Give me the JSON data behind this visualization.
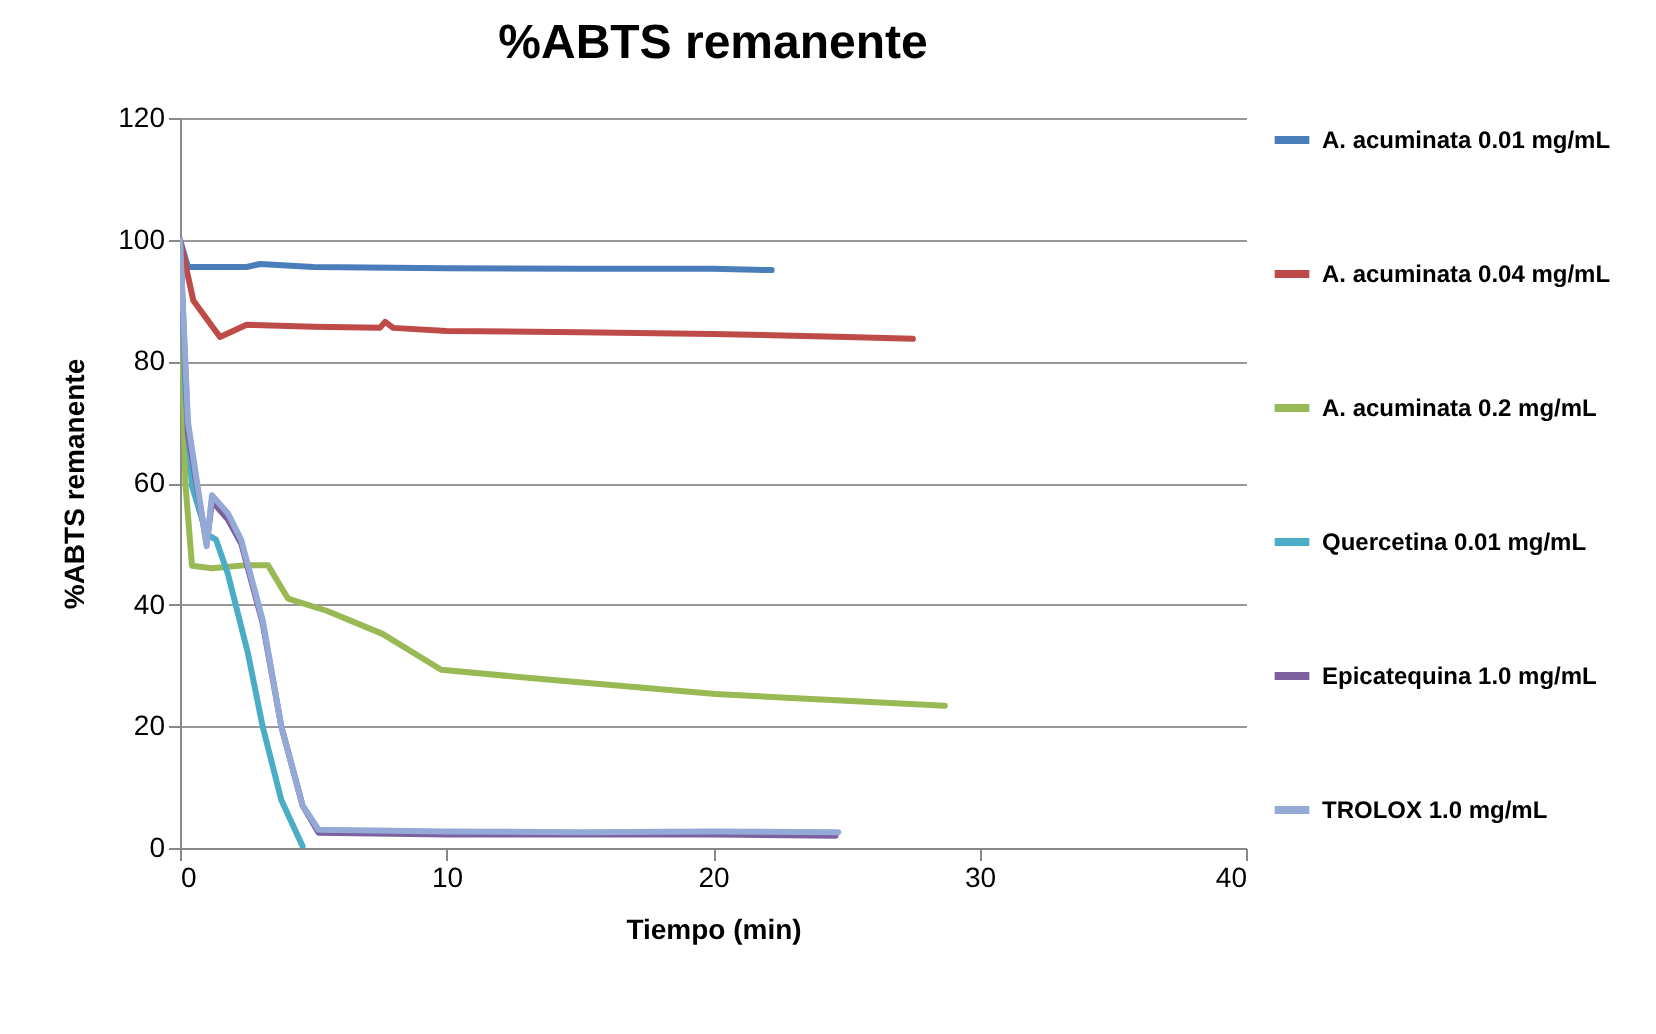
{
  "chart_data": {
    "type": "line",
    "title": "%ABTS remanente",
    "xlabel": "Tiempo (min)",
    "ylabel": "%ABTS remanente",
    "xlim": [
      0,
      40
    ],
    "xticks": [
      0,
      10,
      20,
      30,
      40
    ],
    "ylim": [
      0,
      120
    ],
    "yticks": [
      0,
      20,
      40,
      60,
      80,
      100,
      120
    ],
    "grid": "y",
    "legend": "right",
    "marker": "none",
    "line_style": "solid",
    "series": [
      {
        "name": "A. acuminata 0.01 mg/mL",
        "color": "#4a7ebb",
        "x": [
          0,
          0.3,
          1,
          2.5,
          3,
          5,
          10,
          15,
          20,
          22.2
        ],
        "values": [
          100,
          95.5,
          95.5,
          95.5,
          96,
          95.5,
          95.3,
          95.2,
          95.2,
          95
        ]
      },
      {
        "name": "A. acuminata 0.04 mg/mL",
        "color": "#be4b48",
        "x": [
          0,
          0.5,
          1,
          1.5,
          2.5,
          5,
          7.5,
          7.7,
          8,
          10,
          15,
          20,
          25,
          27.5
        ],
        "values": [
          100,
          90,
          87,
          84,
          86,
          85.7,
          85.5,
          86.5,
          85.5,
          85,
          84.8,
          84.5,
          84,
          83.7
        ]
      },
      {
        "name": "A. acuminata 0.2 mg/mL",
        "color": "#98b954",
        "x": [
          0,
          0.2,
          0.45,
          1.2,
          2.5,
          3.3,
          4.05,
          5.5,
          7.6,
          9.8,
          14,
          20.1,
          25,
          28.7
        ],
        "values": [
          100,
          60,
          46.4,
          46,
          46.5,
          46.5,
          41,
          39,
          35.2,
          29.3,
          27.6,
          25.3,
          24.2,
          23.4
        ]
      },
      {
        "name": "Quercetina 0.01 mg/mL",
        "color": "#4bacc6",
        "x": [
          0,
          0.2,
          0.45,
          1,
          1.35,
          1.8,
          2.55,
          3.1,
          3.8,
          4.6
        ],
        "values": [
          100,
          75,
          59.5,
          51.6,
          50.7,
          45,
          32,
          20,
          7.9,
          0.3
        ]
      },
      {
        "name": "Epicatequina 1.0 mg/mL",
        "color": "#7d60a0",
        "x": [
          0,
          0.3,
          0.5,
          1,
          1.2,
          1.8,
          2.3,
          3.1,
          3.8,
          4.6,
          5.2,
          10,
          15,
          20,
          24.6
        ],
        "values": [
          100,
          68,
          63,
          50,
          57,
          54,
          50,
          37,
          20,
          7,
          2.5,
          2.2,
          2.2,
          2.2,
          2
        ]
      },
      {
        "name": "TROLOX 1.0 mg/mL",
        "color": "#95a9d6",
        "x": [
          0,
          0.3,
          1,
          1.2,
          1.8,
          2.3,
          3.1,
          3.8,
          4.6,
          5.2,
          10,
          15,
          20,
          24.7
        ],
        "values": [
          100,
          70,
          49.6,
          58,
          55,
          50.6,
          37.5,
          20,
          7,
          3,
          2.7,
          2.6,
          2.7,
          2.6
        ]
      }
    ]
  }
}
